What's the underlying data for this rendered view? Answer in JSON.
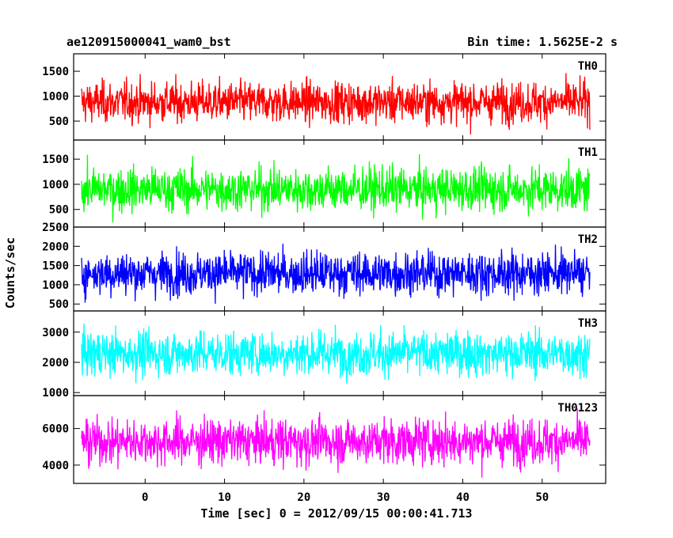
{
  "header": {
    "left_title": "ae120915000041_wam0_bst",
    "right_title": "Bin time: 1.5625E-2 s"
  },
  "colors": {
    "TH0": "#ff0000",
    "TH1": "#00ff00",
    "TH2": "#0000ff",
    "TH3": "#00ffff",
    "TH0123": "#ff00ff"
  },
  "chart_data": {
    "type": "line",
    "title": "ae120915000041_wam0_bst",
    "subtitle": "Bin time: 1.5625E-2 s",
    "xlabel": "Time [sec] 0 = 2012/09/15 00:00:41.713",
    "ylabel": "Counts/sec",
    "xlim": [
      -9,
      58
    ],
    "x_range_data": [
      -8,
      56
    ],
    "bin_time_s": 0.015625,
    "x_ticks": [
      0,
      10,
      20,
      30,
      40,
      50
    ],
    "x_tick_labels": [
      "0",
      "10",
      "20",
      "30",
      "40",
      "50"
    ],
    "grid": false,
    "panels": [
      {
        "name": "TH0",
        "label": "TH0",
        "color": "#ff0000",
        "ylim": [
          120,
          1850
        ],
        "y_ticks": [
          500,
          1000,
          1500
        ],
        "y_tick_labels": [
          "500",
          "1000",
          "1500"
        ],
        "mean": 880,
        "typical_min": 250,
        "typical_max": 1750
      },
      {
        "name": "TH1",
        "label": "TH1",
        "color": "#00ff00",
        "ylim": [
          150,
          1880
        ],
        "y_ticks": [
          500,
          1000,
          1500
        ],
        "y_tick_labels": [
          "500",
          "1000",
          "1500"
        ],
        "mean": 900,
        "typical_min": 250,
        "typical_max": 1850
      },
      {
        "name": "TH2",
        "label": "TH2",
        "color": "#0000ff",
        "ylim": [
          320,
          2500
        ],
        "y_ticks": [
          500,
          1000,
          1500,
          2000,
          2500
        ],
        "y_tick_labels": [
          "500",
          "1000",
          "1500",
          "2000",
          "2500"
        ],
        "mean": 1300,
        "typical_min": 400,
        "typical_max": 2450
      },
      {
        "name": "TH3",
        "label": "TH3",
        "color": "#00ffff",
        "ylim": [
          900,
          3700
        ],
        "y_ticks": [
          1000,
          2000,
          3000
        ],
        "y_tick_labels": [
          "1000",
          "2000",
          "3000"
        ],
        "mean": 2300,
        "typical_min": 1000,
        "typical_max": 3700
      },
      {
        "name": "TH0123",
        "label": "TH0123",
        "color": "#ff00ff",
        "ylim": [
          3000,
          7800
        ],
        "y_ticks": [
          4000,
          6000
        ],
        "y_tick_labels": [
          "4000",
          "6000"
        ],
        "mean": 5300,
        "typical_min": 3200,
        "typical_max": 7800
      }
    ]
  }
}
